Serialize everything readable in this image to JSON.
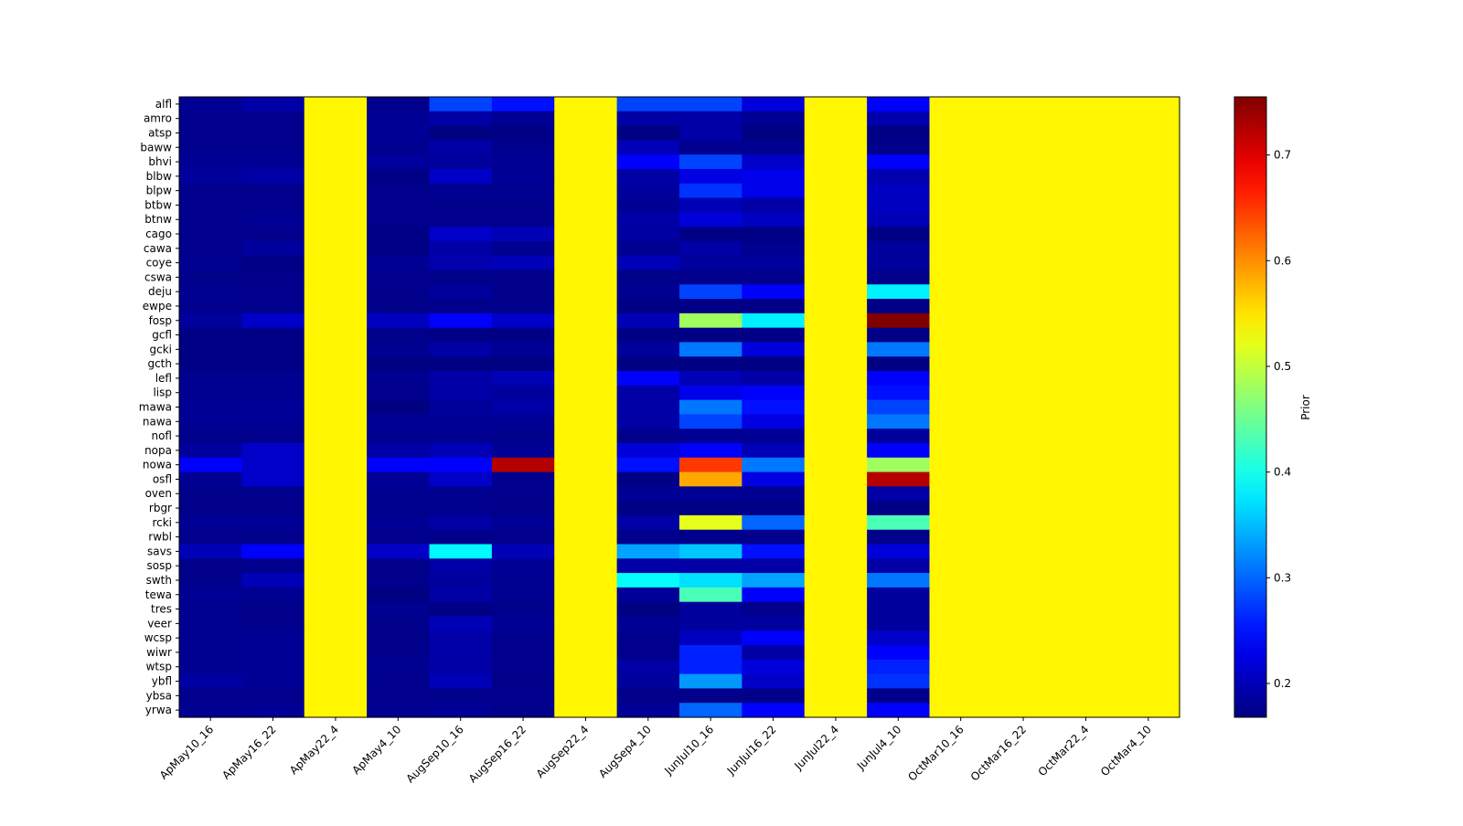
{
  "chart_data": {
    "type": "heatmap",
    "title": "",
    "xlabel": "",
    "ylabel": "",
    "colorbar_label": "Prior",
    "colormap": "jet",
    "vmin": 0.168,
    "vmax": 0.755,
    "colorbar_ticks": [
      0.2,
      0.3,
      0.4,
      0.5,
      0.6,
      0.7
    ],
    "colorbar_tick_labels": [
      "0.2",
      "0.3",
      "0.4",
      "0.5",
      "0.6",
      "0.7"
    ],
    "columns": [
      "ApMay10_16",
      "ApMay16_22",
      "ApMay22_4",
      "ApMay4_10",
      "AugSep10_16",
      "AugSep16_22",
      "AugSep22_4",
      "AugSep4_10",
      "JunJul10_16",
      "JunJul16_22",
      "JunJul22_4",
      "JunJul4_10",
      "OctMar10_16",
      "OctMar16_22",
      "OctMar22_4",
      "OctMar4_10"
    ],
    "rows": [
      "alfl",
      "amro",
      "atsp",
      "baww",
      "bhvi",
      "blbw",
      "blpw",
      "btbw",
      "btnw",
      "cago",
      "cawa",
      "coye",
      "cswa",
      "deju",
      "ewpe",
      "fosp",
      "gcfl",
      "gcki",
      "gcth",
      "lefl",
      "lisp",
      "mawa",
      "nawa",
      "nofl",
      "nopa",
      "nowa",
      "osfl",
      "oven",
      "rbgr",
      "rcki",
      "rwbl",
      "savs",
      "sosp",
      "swth",
      "tewa",
      "tres",
      "veer",
      "wcsp",
      "wiwr",
      "wtsp",
      "ybfl",
      "ybsa",
      "yrwa"
    ],
    "uniform_columns_value": 0.54,
    "uniform_columns": [
      "ApMay22_4",
      "AugSep22_4",
      "JunJul22_4",
      "OctMar10_16",
      "OctMar16_22",
      "OctMar22_4",
      "OctMar4_10"
    ],
    "varying_columns": [
      "ApMay10_16",
      "ApMay16_22",
      "ApMay4_10",
      "AugSep10_16",
      "AugSep16_22",
      "AugSep4_10",
      "JunJul10_16",
      "JunJul16_22",
      "JunJul4_10"
    ],
    "values_varying_columns": [
      [
        0.18,
        0.19,
        0.175,
        0.28,
        0.25,
        0.28,
        0.28,
        0.22,
        0.24
      ],
      [
        0.175,
        0.175,
        0.18,
        0.19,
        0.18,
        0.19,
        0.19,
        0.18,
        0.195
      ],
      [
        0.175,
        0.175,
        0.18,
        0.17,
        0.172,
        0.17,
        0.19,
        0.17,
        0.172
      ],
      [
        0.175,
        0.175,
        0.178,
        0.19,
        0.175,
        0.2,
        0.178,
        0.178,
        0.175
      ],
      [
        0.18,
        0.18,
        0.185,
        0.185,
        0.18,
        0.24,
        0.28,
        0.21,
        0.24
      ],
      [
        0.185,
        0.19,
        0.172,
        0.21,
        0.18,
        0.19,
        0.225,
        0.23,
        0.195
      ],
      [
        0.175,
        0.175,
        0.175,
        0.178,
        0.178,
        0.185,
        0.27,
        0.23,
        0.205
      ],
      [
        0.175,
        0.176,
        0.175,
        0.176,
        0.176,
        0.18,
        0.2,
        0.19,
        0.205
      ],
      [
        0.175,
        0.18,
        0.175,
        0.176,
        0.176,
        0.19,
        0.22,
        0.205,
        0.2
      ],
      [
        0.175,
        0.175,
        0.172,
        0.21,
        0.2,
        0.188,
        0.172,
        0.172,
        0.172
      ],
      [
        0.175,
        0.185,
        0.172,
        0.19,
        0.178,
        0.178,
        0.19,
        0.178,
        0.185
      ],
      [
        0.178,
        0.172,
        0.18,
        0.195,
        0.2,
        0.2,
        0.185,
        0.185,
        0.185
      ],
      [
        0.174,
        0.174,
        0.176,
        0.174,
        0.174,
        0.174,
        0.176,
        0.176,
        0.176
      ],
      [
        0.178,
        0.175,
        0.176,
        0.185,
        0.175,
        0.178,
        0.28,
        0.24,
        0.38
      ],
      [
        0.175,
        0.175,
        0.174,
        0.174,
        0.174,
        0.172,
        0.172,
        0.172,
        0.172
      ],
      [
        0.185,
        0.21,
        0.205,
        0.24,
        0.21,
        0.2,
        0.48,
        0.38,
        0.755
      ],
      [
        0.172,
        0.172,
        0.175,
        0.172,
        0.172,
        0.172,
        0.172,
        0.172,
        0.172
      ],
      [
        0.172,
        0.172,
        0.178,
        0.19,
        0.18,
        0.185,
        0.31,
        0.22,
        0.31
      ],
      [
        0.172,
        0.172,
        0.17,
        0.17,
        0.17,
        0.17,
        0.17,
        0.17,
        0.17
      ],
      [
        0.178,
        0.178,
        0.178,
        0.19,
        0.2,
        0.24,
        0.2,
        0.19,
        0.24
      ],
      [
        0.178,
        0.178,
        0.176,
        0.19,
        0.185,
        0.19,
        0.23,
        0.24,
        0.25
      ],
      [
        0.18,
        0.182,
        0.17,
        0.183,
        0.19,
        0.19,
        0.31,
        0.25,
        0.28
      ],
      [
        0.18,
        0.18,
        0.18,
        0.18,
        0.18,
        0.19,
        0.28,
        0.225,
        0.31
      ],
      [
        0.176,
        0.176,
        0.178,
        0.178,
        0.176,
        0.175,
        0.18,
        0.18,
        0.185
      ],
      [
        0.185,
        0.21,
        0.19,
        0.2,
        0.18,
        0.22,
        0.24,
        0.2,
        0.24
      ],
      [
        0.24,
        0.21,
        0.24,
        0.24,
        0.725,
        0.25,
        0.65,
        0.31,
        0.48
      ],
      [
        0.178,
        0.21,
        0.18,
        0.21,
        0.175,
        0.172,
        0.585,
        0.225,
        0.725
      ],
      [
        0.174,
        0.176,
        0.178,
        0.178,
        0.175,
        0.18,
        0.18,
        0.178,
        0.19
      ],
      [
        0.174,
        0.174,
        0.175,
        0.175,
        0.174,
        0.172,
        0.172,
        0.172,
        0.172
      ],
      [
        0.18,
        0.18,
        0.18,
        0.19,
        0.18,
        0.19,
        0.52,
        0.3,
        0.43
      ],
      [
        0.175,
        0.175,
        0.175,
        0.175,
        0.175,
        0.175,
        0.175,
        0.175,
        0.175
      ],
      [
        0.2,
        0.24,
        0.21,
        0.385,
        0.2,
        0.335,
        0.356,
        0.25,
        0.22
      ],
      [
        0.174,
        0.176,
        0.174,
        0.19,
        0.18,
        0.19,
        0.19,
        0.19,
        0.19
      ],
      [
        0.176,
        0.2,
        0.176,
        0.185,
        0.178,
        0.39,
        0.37,
        0.335,
        0.31
      ],
      [
        0.18,
        0.178,
        0.17,
        0.19,
        0.178,
        0.182,
        0.43,
        0.24,
        0.185
      ],
      [
        0.178,
        0.174,
        0.178,
        0.172,
        0.175,
        0.17,
        0.185,
        0.175,
        0.185
      ],
      [
        0.178,
        0.176,
        0.176,
        0.2,
        0.18,
        0.18,
        0.186,
        0.186,
        0.186
      ],
      [
        0.178,
        0.18,
        0.174,
        0.19,
        0.176,
        0.176,
        0.205,
        0.24,
        0.21
      ],
      [
        0.178,
        0.18,
        0.175,
        0.192,
        0.176,
        0.176,
        0.26,
        0.19,
        0.24
      ],
      [
        0.178,
        0.18,
        0.178,
        0.19,
        0.176,
        0.19,
        0.26,
        0.22,
        0.26
      ],
      [
        0.188,
        0.18,
        0.176,
        0.2,
        0.174,
        0.185,
        0.33,
        0.21,
        0.27
      ],
      [
        0.176,
        0.176,
        0.176,
        0.176,
        0.175,
        0.174,
        0.174,
        0.174,
        0.176
      ],
      [
        0.178,
        0.18,
        0.178,
        0.18,
        0.176,
        0.18,
        0.3,
        0.24,
        0.24
      ]
    ]
  }
}
